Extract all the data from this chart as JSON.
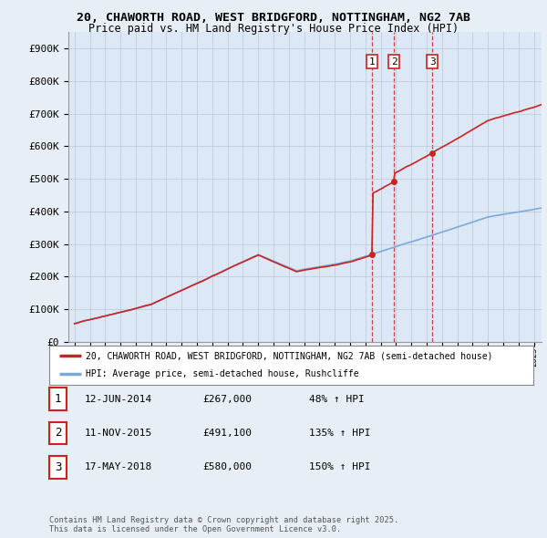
{
  "title": "20, CHAWORTH ROAD, WEST BRIDGFORD, NOTTINGHAM, NG2 7AB",
  "subtitle": "Price paid vs. HM Land Registry's House Price Index (HPI)",
  "background_color": "#e8eef5",
  "plot_bg_color": "#dce8f5",
  "ylim": [
    0,
    950000
  ],
  "yticks": [
    0,
    100000,
    200000,
    300000,
    400000,
    500000,
    600000,
    700000,
    800000,
    900000
  ],
  "ytick_labels": [
    "£0",
    "£100K",
    "£200K",
    "£300K",
    "£400K",
    "£500K",
    "£600K",
    "£700K",
    "£800K",
    "£900K"
  ],
  "sale_dates_num": [
    2014.44,
    2015.86,
    2018.37
  ],
  "sale_prices": [
    267000,
    491100,
    580000
  ],
  "sale_labels": [
    "1",
    "2",
    "3"
  ],
  "hpi_line_color": "#7aaadd",
  "price_line_color": "#cc2222",
  "vline_color": "#cc2222",
  "legend_label_price": "20, CHAWORTH ROAD, WEST BRIDGFORD, NOTTINGHAM, NG2 7AB (semi-detached house)",
  "legend_label_hpi": "HPI: Average price, semi-detached house, Rushcliffe",
  "annotation_rows": [
    {
      "label": "1",
      "date": "12-JUN-2014",
      "price": "£267,000",
      "pct": "48% ↑ HPI"
    },
    {
      "label": "2",
      "date": "11-NOV-2015",
      "price": "£491,100",
      "pct": "135% ↑ HPI"
    },
    {
      "label": "3",
      "date": "17-MAY-2018",
      "price": "£580,000",
      "pct": "150% ↑ HPI"
    }
  ],
  "footer": "Contains HM Land Registry data © Crown copyright and database right 2025.\nThis data is licensed under the Open Government Licence v3.0."
}
